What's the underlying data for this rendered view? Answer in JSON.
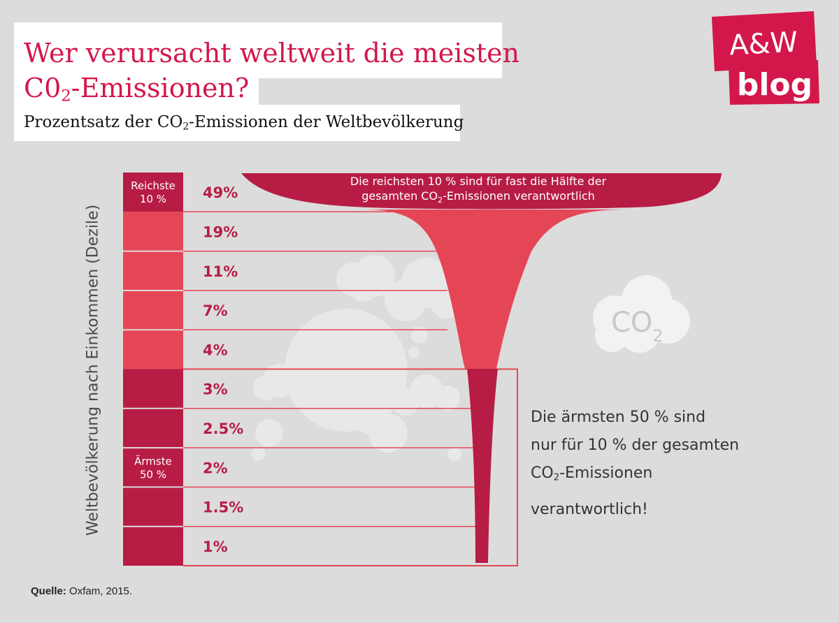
{
  "title": {
    "line1": "Wer verursacht weltweit die meisten",
    "line2_prefix": "C0",
    "line2_sub": "2",
    "line2_suffix": "-Emissionen?"
  },
  "subtitle": {
    "prefix": "Prozentsatz der CO",
    "sub": "2",
    "suffix": "-Emissionen der Weltbevölkerung"
  },
  "logo": {
    "line1": "A&W",
    "line2": "blog"
  },
  "axis_label": "Weltbevölkerung nach Einkommen (Dezile)",
  "annotations": {
    "richest_prefix": "Die reichsten 10 % sind für fast die Hälfte der",
    "richest_line2_prefix": "gesamten CO",
    "richest_line2_sub": "2",
    "richest_line2_suffix": "-Emissionen verantwortlich",
    "poorest_line1": "Die ärmsten 50 % sind",
    "poorest_line2": "nur für 10 % der gesamten",
    "poorest_line3_prefix": "CO",
    "poorest_line3_sub": "2",
    "poorest_line3_suffix": "-Emissionen",
    "poorest_line4": "verantwortlich!"
  },
  "cloud_label": {
    "text": "CO",
    "sub": "2"
  },
  "source": {
    "label": "Quelle:",
    "text": " Oxfam, 2015."
  },
  "colors": {
    "dark": "#b71c45",
    "medium": "#e54656",
    "title": "#d3174b"
  },
  "chart_data": {
    "type": "bar",
    "title": "Wer verursacht weltweit die meisten C02-Emissionen?",
    "ylabel": "Weltbevölkerung nach Einkommen (Dezile)",
    "groups": [
      {
        "label_line1": "Reichste",
        "label_line2": "10 %",
        "deciles": 1
      },
      {
        "label_line1": "",
        "label_line2": "",
        "deciles": 4
      },
      {
        "label_line1": "Ärmste",
        "label_line2": "50 %",
        "deciles": 5
      }
    ],
    "values": [
      49,
      19,
      11,
      7,
      4,
      3,
      2.5,
      2,
      1.5,
      1
    ],
    "value_labels": [
      "49%",
      "19%",
      "11%",
      "7%",
      "4%",
      "3%",
      "2.5%",
      "2%",
      "1.5%",
      "1%"
    ]
  }
}
